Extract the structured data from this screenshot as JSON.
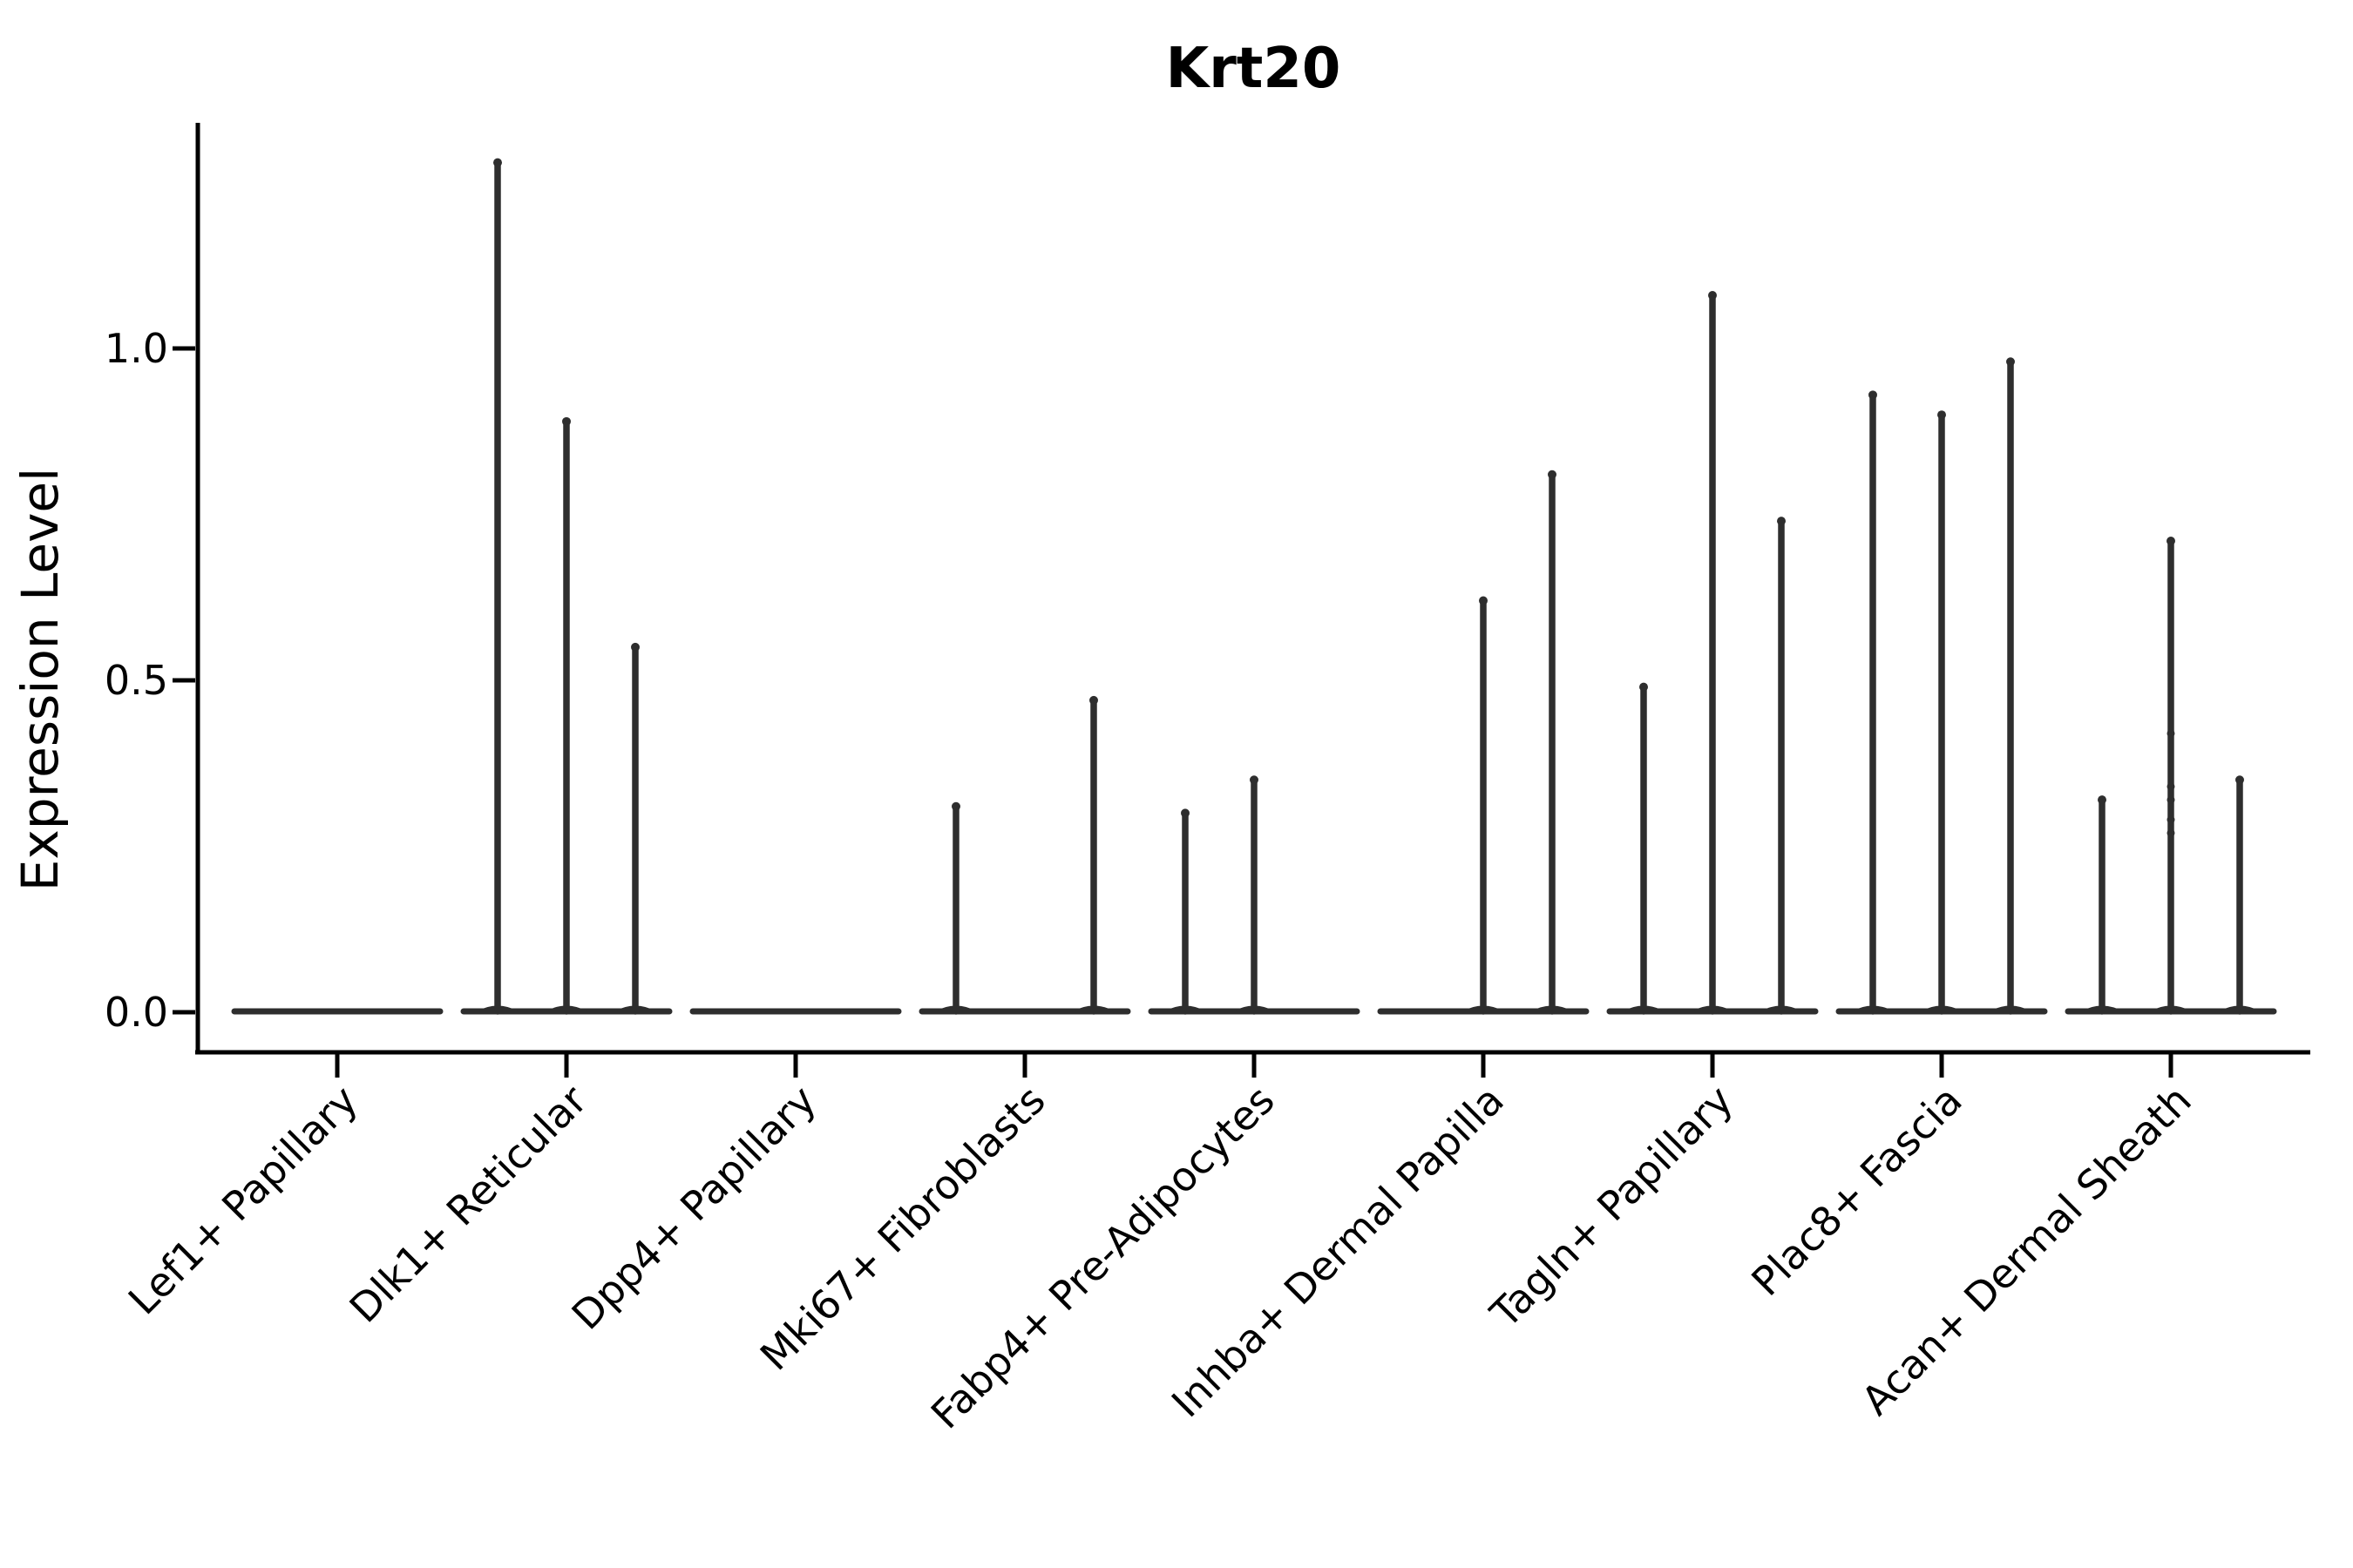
{
  "title": "Krt20",
  "chart_data": {
    "type": "violin",
    "title": "Krt20",
    "xlabel": "",
    "ylabel": "Expression Level",
    "yticks": [
      0.0,
      0.5,
      1.0
    ],
    "ytick_labels": [
      "0.0",
      "0.5",
      "1.0"
    ],
    "ylim": [
      -0.06,
      1.34
    ],
    "grid": false,
    "legend_position": "none",
    "violins_per_category": 3,
    "categories": [
      "Lef1+ Papillary",
      "Dlk1+ Reticular",
      "Dpp4+ Papillary",
      "Mki67+ Fibroblasts",
      "Fabp4+ Pre-Adipocytes",
      "Inhba+ Dermal Papilla",
      "Tagln+ Papillary",
      "Plac8+ Fascia",
      "Acan+ Dermal Sheath"
    ],
    "series": [
      {
        "category": "Lef1+ Papillary",
        "spike_max_values": [
          0,
          0,
          0
        ]
      },
      {
        "category": "Dlk1+ Reticular",
        "spike_max_values": [
          1.28,
          0.89,
          0.55
        ]
      },
      {
        "category": "Dpp4+ Papillary",
        "spike_max_values": [
          0,
          0,
          0
        ]
      },
      {
        "category": "Mki67+ Fibroblasts",
        "spike_max_values": [
          0.31,
          0,
          0.47
        ]
      },
      {
        "category": "Fabp4+ Pre-Adipocytes",
        "spike_max_values": [
          0.3,
          0.35,
          0
        ]
      },
      {
        "category": "Inhba+ Dermal Papilla",
        "spike_max_values": [
          0,
          0.62,
          0.81
        ]
      },
      {
        "category": "Tagln+ Papillary",
        "spike_max_values": [
          0.49,
          1.08,
          0.74
        ]
      },
      {
        "category": "Plac8+ Fascia",
        "spike_max_values": [
          0.93,
          0.9,
          0.98
        ]
      },
      {
        "category": "Acan+ Dermal Sheath",
        "spike_max_values": [
          0.32,
          0.71,
          0.35
        ]
      }
    ],
    "extra_points": [
      {
        "category_index": 8,
        "violin_index": 1,
        "values": [
          0.27,
          0.29,
          0.32,
          0.34,
          0.42
        ]
      }
    ],
    "colors": {
      "violin": "#2e2e2e",
      "axis": "#000000",
      "text": "#000000",
      "background": "#ffffff"
    }
  }
}
